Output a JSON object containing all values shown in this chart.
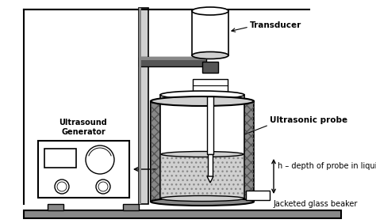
{
  "bg_color": "#ffffff",
  "lc": "#000000",
  "gray_light": "#d0d0d0",
  "gray_mid": "#888888",
  "gray_dark": "#555555",
  "gray_jacket": "#b0b0b0",
  "labels": {
    "transducer": "Transducer",
    "probe": "Ultrasonic probe",
    "h_label": "h – depth of probe in liquid",
    "beaker": "Jacketed glass beaker",
    "generator": "Ultrasound\nGenerator"
  },
  "figsize": [
    4.74,
    2.82
  ],
  "dpi": 100
}
